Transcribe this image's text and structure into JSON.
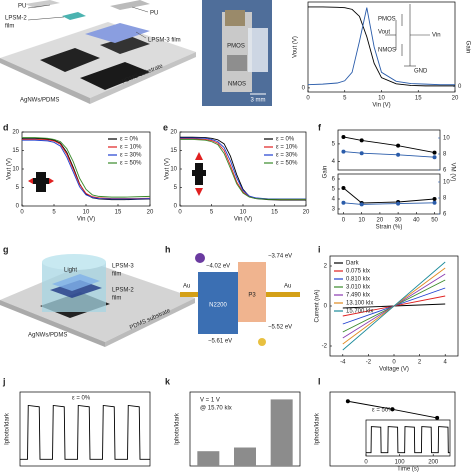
{
  "figure": {
    "panel_labels": [
      "d",
      "e",
      "f",
      "g",
      "h",
      "i",
      "j",
      "k",
      "l"
    ],
    "a": [
      "PU",
      "LPSM-2",
      "film",
      "PU",
      "LPSM-3 film",
      "AgNWs/PDMS",
      "PDMS substrate"
    ],
    "b": [
      "PMOS",
      "NMOS",
      "3 mm"
    ],
    "c_inset": [
      "PMOS",
      "Vout",
      "NMOS",
      "Vin",
      "GND"
    ],
    "g": [
      "Light",
      "LPSM-3",
      "film",
      "LPSM-2",
      "film",
      "AgNWs/PDMS",
      "PDMS substrate"
    ],
    "h": [
      "−4.02 eV",
      "−3.74 eV",
      "Au",
      "Au",
      "N2200",
      "P3",
      "−5.52 eV",
      "−5.61 eV"
    ]
  },
  "chart_data": [
    {
      "type": "line",
      "xlabel": "Vin (V)",
      "ylabel": "Vout (V)",
      "y2label": "Gain",
      "y2color": "#2a5caa",
      "x": [
        0,
        2,
        4,
        5,
        6,
        7,
        8,
        9,
        10,
        12,
        14,
        16,
        18,
        20
      ],
      "xlim": [
        0,
        20
      ],
      "xticks": [
        0,
        5,
        10,
        15,
        20
      ],
      "ylim": [
        -1,
        21
      ],
      "yticks": [
        0
      ],
      "y2lim": [
        -1,
        15
      ],
      "y2ticks": [
        0
      ],
      "series": [
        {
          "color": "#000000",
          "values": [
            19.8,
            19.8,
            19.7,
            19.6,
            19.2,
            17.5,
            12.5,
            6.0,
            2.5,
            1.0,
            0.6,
            0.5,
            0.5,
            0.5
          ]
        },
        {
          "color": "#2a5caa",
          "axis": "y2",
          "values": [
            0.3,
            0.4,
            0.6,
            1.0,
            2.5,
            8.0,
            14.0,
            7.0,
            2.5,
            0.9,
            0.5,
            0.4,
            0.3,
            0.3
          ]
        }
      ]
    },
    {
      "type": "line",
      "xlabel": "Vin (V)",
      "ylabel": "Vout (V)",
      "legend": "upper right",
      "x": [
        0,
        2,
        4,
        5,
        6,
        7,
        8,
        9,
        10,
        11,
        12,
        14,
        16,
        18,
        20
      ],
      "xlim": [
        0,
        20
      ],
      "xticks": [
        0,
        5,
        10,
        15,
        20
      ],
      "ylim": [
        0,
        20
      ],
      "yticks": [
        0,
        5,
        10,
        15,
        20
      ],
      "series": [
        {
          "name": "ε = 0%",
          "color": "#000000",
          "values": [
            18.3,
            18.3,
            18.1,
            17.8,
            17.0,
            14.5,
            10.5,
            6.0,
            3.2,
            2.2,
            1.9,
            1.7,
            1.7,
            1.8,
            1.9
          ]
        },
        {
          "name": "ε = 10%",
          "color": "#e02020",
          "values": [
            18.0,
            18.0,
            17.9,
            17.6,
            16.7,
            14.0,
            10.0,
            5.8,
            3.4,
            2.5,
            2.2,
            2.0,
            2.0,
            2.0,
            2.1
          ]
        },
        {
          "name": "ε = 30%",
          "color": "#2040d0",
          "values": [
            17.8,
            17.8,
            17.6,
            17.2,
            16.2,
            13.2,
            9.2,
            5.2,
            3.0,
            2.3,
            2.0,
            1.9,
            1.9,
            1.9,
            2.0
          ]
        },
        {
          "name": "ε = 50%",
          "color": "#3a8a2a",
          "values": [
            18.5,
            18.5,
            18.3,
            18.0,
            17.4,
            15.5,
            12.0,
            7.5,
            4.5,
            3.0,
            2.6,
            2.4,
            2.4,
            2.5,
            2.6
          ]
        }
      ]
    },
    {
      "type": "line",
      "xlabel": "Vin (V)",
      "ylabel": "Vout (V)",
      "legend": "upper right",
      "x": [
        0,
        2,
        4,
        5,
        6,
        7,
        8,
        9,
        10,
        11,
        12,
        14,
        16,
        18,
        20
      ],
      "xlim": [
        0,
        20
      ],
      "xticks": [
        0,
        5,
        10,
        15,
        20
      ],
      "ylim": [
        0,
        20
      ],
      "yticks": [
        0,
        5,
        10,
        15,
        20
      ],
      "series": [
        {
          "name": "ε = 0%",
          "color": "#000000",
          "values": [
            18.6,
            18.6,
            18.5,
            18.3,
            17.9,
            16.8,
            13.5,
            8.5,
            4.5,
            2.6,
            2.0,
            1.7,
            1.6,
            1.6,
            1.6
          ]
        },
        {
          "name": "ε = 10%",
          "color": "#e02020",
          "values": [
            18.2,
            18.2,
            18.0,
            17.7,
            17.0,
            15.0,
            11.0,
            6.5,
            3.8,
            2.5,
            2.1,
            1.9,
            1.8,
            1.8,
            1.8
          ]
        },
        {
          "name": "ε = 30%",
          "color": "#2040d0",
          "values": [
            18.4,
            18.4,
            18.3,
            18.0,
            17.4,
            15.8,
            12.2,
            7.6,
            4.2,
            2.7,
            2.2,
            1.9,
            1.9,
            1.9,
            1.9
          ]
        },
        {
          "name": "ε = 50%",
          "color": "#3a8a2a",
          "values": [
            18.0,
            18.0,
            17.8,
            17.4,
            16.6,
            14.2,
            10.2,
            6.0,
            3.5,
            2.4,
            2.0,
            1.8,
            1.8,
            1.8,
            1.8
          ]
        }
      ]
    },
    {
      "type": "line",
      "markers": true,
      "ylabel": "Gain",
      "y2label": "VM (V)",
      "y2color": "#2a5caa",
      "x": [
        0,
        10,
        30,
        50
      ],
      "xlim": [
        -3,
        53
      ],
      "ylim": [
        3.5,
        5.8
      ],
      "yticks": [
        4,
        5
      ],
      "y2lim": [
        6,
        11
      ],
      "y2ticks": [
        6,
        8,
        10
      ],
      "series": [
        {
          "color": "#000000",
          "values": [
            5.4,
            5.2,
            4.9,
            4.5
          ]
        },
        {
          "color": "#2a5caa",
          "axis": "y2",
          "values": [
            8.3,
            8.1,
            7.9,
            7.6
          ]
        }
      ]
    },
    {
      "type": "line",
      "markers": true,
      "xlabel": "Strain (%)",
      "y2color": "#2a5caa",
      "x": [
        0,
        10,
        30,
        50
      ],
      "xlim": [
        -3,
        53
      ],
      "xticks": [
        0,
        10,
        20,
        30,
        40,
        50
      ],
      "ylim": [
        2.5,
        6.5
      ],
      "yticks": [
        3,
        4,
        5,
        6
      ],
      "y2lim": [
        6,
        11
      ],
      "y2ticks": [
        6,
        8,
        10
      ],
      "series": [
        {
          "color": "#000000",
          "values": [
            5.1,
            3.6,
            3.7,
            4.0
          ]
        },
        {
          "color": "#2a5caa",
          "axis": "y2",
          "values": [
            7.4,
            7.2,
            7.3,
            7.4
          ]
        }
      ]
    },
    {
      "type": "line",
      "xlabel": "Voltage (V)",
      "ylabel": "Current (nA)",
      "legend": "upper left",
      "x": [
        -4,
        4
      ],
      "xlim": [
        -5,
        5
      ],
      "xticks": [
        -4,
        -2,
        0,
        2,
        4
      ],
      "ylim": [
        -2.5,
        2.5
      ],
      "yticks": [
        -2,
        0,
        2
      ],
      "series": [
        {
          "name": "Dark",
          "color": "#000000",
          "values": [
            -0.1,
            0.1
          ]
        },
        {
          "name": "0.075 klx",
          "color": "#e02020",
          "values": [
            -0.5,
            0.5
          ]
        },
        {
          "name": "0.810 klx",
          "color": "#2040d0",
          "values": [
            -0.9,
            0.9
          ]
        },
        {
          "name": "3.010 klx",
          "color": "#3a8a2a",
          "values": [
            -1.3,
            1.3
          ]
        },
        {
          "name": "7.490 klx",
          "color": "#8a3ab0",
          "values": [
            -1.6,
            1.6
          ]
        },
        {
          "name": "13.100 klx",
          "color": "#e08a20",
          "values": [
            -1.9,
            1.9
          ]
        },
        {
          "name": "15.700 klx",
          "color": "#1a8a9a",
          "values": [
            -2.2,
            2.2
          ]
        }
      ]
    },
    {
      "type": "line",
      "ylabel": "Iphoto/Idark",
      "annotations": [
        "ε = 0%"
      ],
      "x": [
        0,
        3,
        3.3,
        7.7,
        8,
        13,
        13.3,
        17.7,
        18,
        23,
        23.3,
        27.7,
        28,
        33,
        33.3,
        37.7,
        38,
        43,
        43.3,
        47.7,
        48,
        52
      ],
      "xlim": [
        0,
        52
      ],
      "ylim": [
        0,
        11
      ],
      "series": [
        {
          "color": "#000000",
          "values": [
            1,
            1,
            9,
            8.8,
            1,
            1,
            9,
            8.8,
            1,
            1,
            9,
            8.8,
            1,
            1,
            9,
            8.8,
            1,
            1,
            9,
            8.8,
            1,
            1
          ]
        }
      ]
    },
    {
      "type": "bar",
      "ylabel": "Iphoto/Idark",
      "annotations": [
        "V = 1 V",
        "@ 15.70 klx"
      ],
      "color": "#8c8c8c",
      "categories": [
        null,
        null,
        null
      ],
      "values": [
        6,
        7.5,
        27
      ],
      "ylim": [
        0,
        30
      ]
    },
    {
      "type": "line",
      "markers": true,
      "ylabel": "Iphoto/Idark",
      "annotations": [
        "ε = 50%"
      ],
      "x": [
        1,
        2,
        3
      ],
      "xlim": [
        0.6,
        3.4
      ],
      "ylim": [
        0,
        12
      ],
      "series": [
        {
          "color": "#000000",
          "values": [
            10.5,
            9.2,
            7.8
          ]
        }
      ]
    },
    {
      "type": "line",
      "xlabel": "Time (s)",
      "x": [
        0,
        15,
        16,
        44,
        45,
        65,
        66,
        94,
        95,
        115,
        116,
        144,
        145,
        165,
        166,
        194,
        195,
        215,
        216,
        244,
        245,
        250
      ],
      "xlim": [
        0,
        250
      ],
      "xticks": [
        0,
        100,
        200
      ],
      "ylim": [
        0,
        11
      ],
      "series": [
        {
          "color": "#000000",
          "values": [
            1,
            1,
            9,
            8.8,
            1,
            1,
            9,
            8.8,
            1,
            1,
            9,
            8.8,
            1,
            1,
            9,
            8.8,
            1,
            1,
            9,
            8.8,
            1,
            1
          ]
        }
      ]
    }
  ]
}
